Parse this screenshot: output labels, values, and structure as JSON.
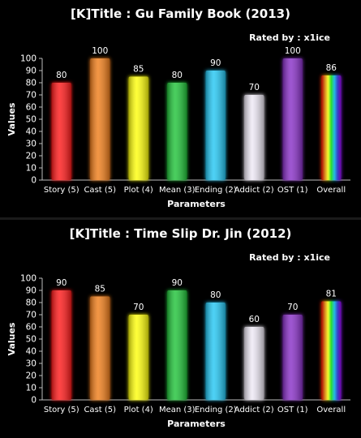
{
  "chart_data": [
    {
      "type": "bar",
      "title": "[K]Title : Gu Family Book (2013)",
      "subtitle": "Rated by : x1ice",
      "xlabel": "Parameters",
      "ylabel": "Values",
      "ylim": [
        0,
        100
      ],
      "yticks": [
        0,
        10,
        20,
        30,
        40,
        50,
        60,
        70,
        80,
        90,
        100
      ],
      "grid": false,
      "categories": [
        "Story (5)",
        "Cast (5)",
        "Plot (4)",
        "Mean (3)",
        "Ending (2)",
        "Addict (2)",
        "OST (1)",
        "Overall"
      ],
      "values": [
        80,
        100,
        85,
        80,
        90,
        70,
        100,
        86
      ],
      "colors": [
        "#ff1a1a",
        "#f07f1f",
        "#ffff10",
        "#22c43a",
        "#26c8f4",
        "#efeaf6",
        "#8a32c8",
        "rainbow"
      ]
    },
    {
      "type": "bar",
      "title": "[K]Title : Time Slip Dr. Jin (2012)",
      "subtitle": "Rated by : x1ice",
      "xlabel": "Parameters",
      "ylabel": "Values",
      "ylim": [
        0,
        100
      ],
      "yticks": [
        0,
        10,
        20,
        30,
        40,
        50,
        60,
        70,
        80,
        90,
        100
      ],
      "grid": false,
      "categories": [
        "Story (5)",
        "Cast (5)",
        "Plot (4)",
        "Mean (3)",
        "Ending (2)",
        "Addict (2)",
        "OST (1)",
        "Overall"
      ],
      "values": [
        90,
        85,
        70,
        90,
        80,
        60,
        70,
        81
      ],
      "colors": [
        "#ff1a1a",
        "#f07f1f",
        "#ffff10",
        "#22c43a",
        "#26c8f4",
        "#efeaf6",
        "#8a32c8",
        "rainbow"
      ]
    }
  ]
}
